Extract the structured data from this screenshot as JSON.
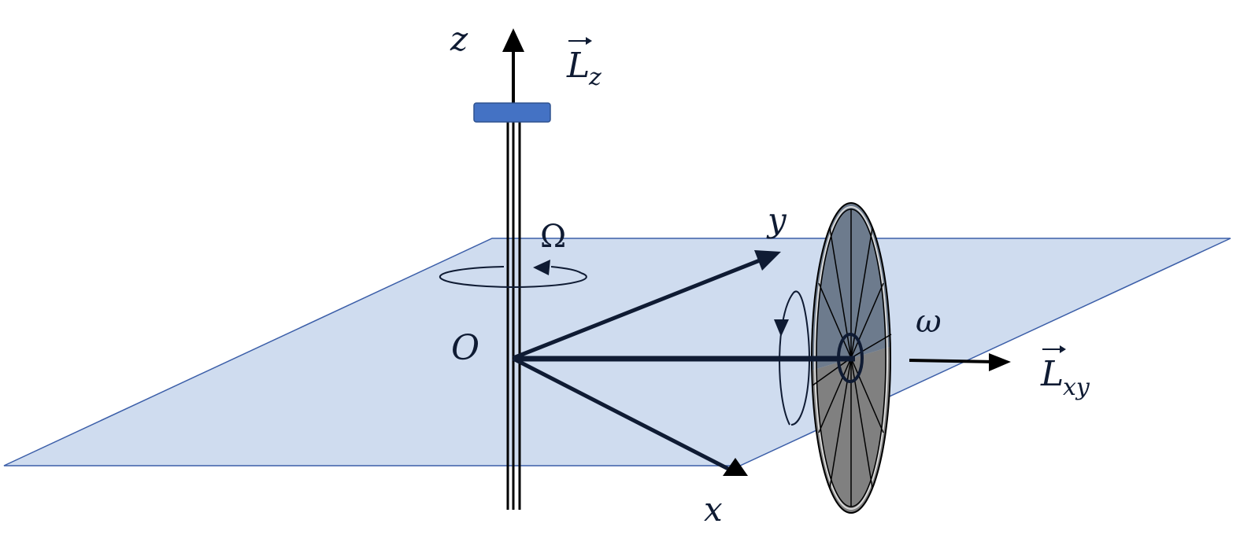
{
  "labels": {
    "z_axis": "z",
    "y_axis": "y",
    "x_axis": "x",
    "origin": "O",
    "omega_precession": "Ω",
    "omega_spin": "ω",
    "L_z_base": "L",
    "L_z_sub": "z",
    "L_xy_base": "L",
    "L_xy_sub": "xy",
    "vector_arrow": "⃗"
  },
  "colors": {
    "plane_fill": "#cfdcef",
    "plane_stroke": "#3b5ea8",
    "support_block": "#4472c4",
    "support_block_stroke": "#2f528f",
    "ink": "#0f1b33",
    "wheel_upper": "#6d7b8d",
    "wheel_lower": "#808080",
    "wheel_rim": "#d9d9d9"
  }
}
